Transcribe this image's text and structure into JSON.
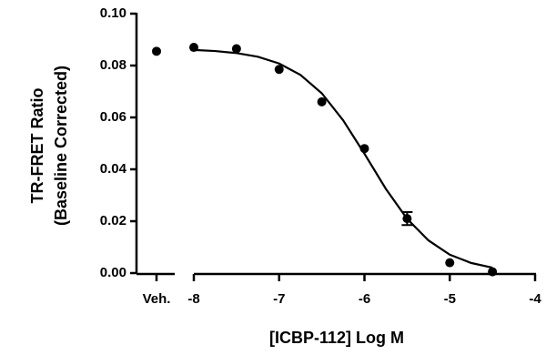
{
  "chart_data": {
    "type": "scatter",
    "x_label": "[ICBP-112] Log M",
    "y_label": [
      "TR-FRET Ratio",
      "(Baseline Corrected)"
    ],
    "color": "#000000",
    "vehicle": {
      "label": "Veh.",
      "value": 0.0855
    },
    "x": [
      -8,
      -7.5,
      -7,
      -6.5,
      -6,
      -5.5,
      -5,
      -4.5
    ],
    "values": [
      0.087,
      0.0865,
      0.0785,
      0.066,
      0.048,
      0.021,
      0.004,
      0.0005
    ],
    "errors": [
      null,
      null,
      null,
      null,
      null,
      0.0025,
      null,
      null
    ],
    "fit": {
      "x": [
        -8,
        -7.75,
        -7.5,
        -7.25,
        -7,
        -6.75,
        -6.5,
        -6.25,
        -6,
        -5.75,
        -5.5,
        -5.25,
        -5,
        -4.75,
        -4.5
      ],
      "values": [
        0.086,
        0.0856,
        0.0848,
        0.0834,
        0.0808,
        0.0764,
        0.0693,
        0.0589,
        0.046,
        0.0325,
        0.0209,
        0.0126,
        0.0071,
        0.0039,
        0.0021
      ]
    },
    "xlim": [
      -8,
      -4
    ],
    "xticks": [
      -8,
      -7,
      -6,
      -5,
      -4
    ],
    "ylim": [
      0,
      0.1
    ],
    "yticks": [
      {
        "value": 0,
        "label": "0.00"
      },
      {
        "value": 0.02,
        "label": "0.02"
      },
      {
        "value": 0.04,
        "label": "0.04"
      },
      {
        "value": 0.06,
        "label": "0.06"
      },
      {
        "value": 0.08,
        "label": "0.08"
      },
      {
        "value": 0.1,
        "label": "0.10"
      }
    ]
  }
}
